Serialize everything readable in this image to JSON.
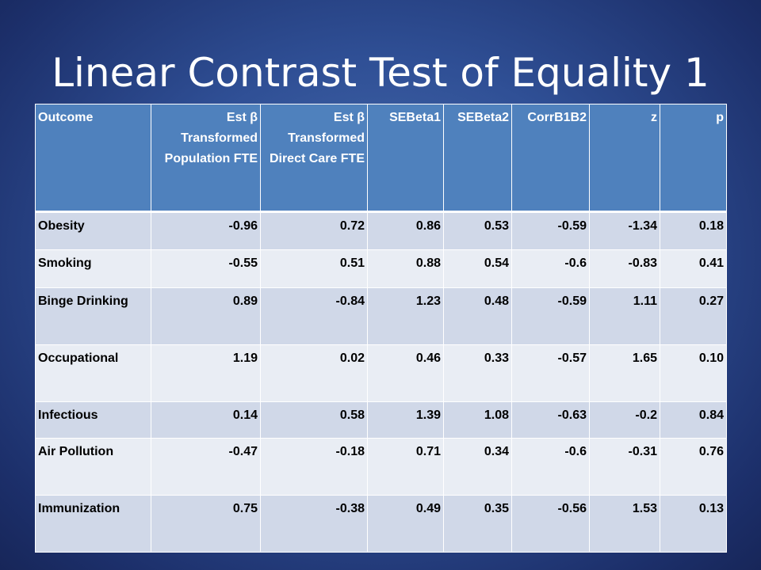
{
  "slide": {
    "title": "Linear Contrast Test of Equality 1"
  },
  "table": {
    "headers": [
      "Outcome",
      "Est β Transformed Population FTE",
      "Est β Transformed Direct Care FTE",
      "SEBeta1",
      "SEBeta2",
      "CorrB1B2",
      "z",
      "p"
    ],
    "rows": [
      [
        "Obesity",
        "-0.96",
        "0.72",
        "0.86",
        "0.53",
        "-0.59",
        "-1.34",
        "0.18"
      ],
      [
        "Smoking",
        "-0.55",
        "0.51",
        "0.88",
        "0.54",
        "-0.6",
        "-0.83",
        "0.41"
      ],
      [
        "Binge Drinking",
        "0.89",
        "-0.84",
        "1.23",
        "0.48",
        "-0.59",
        "1.11",
        "0.27"
      ],
      [
        "Occupational",
        "1.19",
        "0.02",
        "0.46",
        "0.33",
        "-0.57",
        "1.65",
        "0.10"
      ],
      [
        "Infectious",
        "0.14",
        "0.58",
        "1.39",
        "1.08",
        "-0.63",
        "-0.2",
        "0.84"
      ],
      [
        "Air Pollution",
        "-0.47",
        "-0.18",
        "0.71",
        "0.34",
        "-0.6",
        "-0.31",
        "0.76"
      ],
      [
        "Immunization",
        "0.75",
        "-0.38",
        "0.49",
        "0.35",
        "-0.56",
        "1.53",
        "0.13"
      ]
    ]
  },
  "colors": {
    "header_bg": "#4f81bd",
    "row_odd_bg": "#d0d8e8",
    "row_even_bg": "#e9edf4",
    "slide_bg": "#2f4f95"
  }
}
